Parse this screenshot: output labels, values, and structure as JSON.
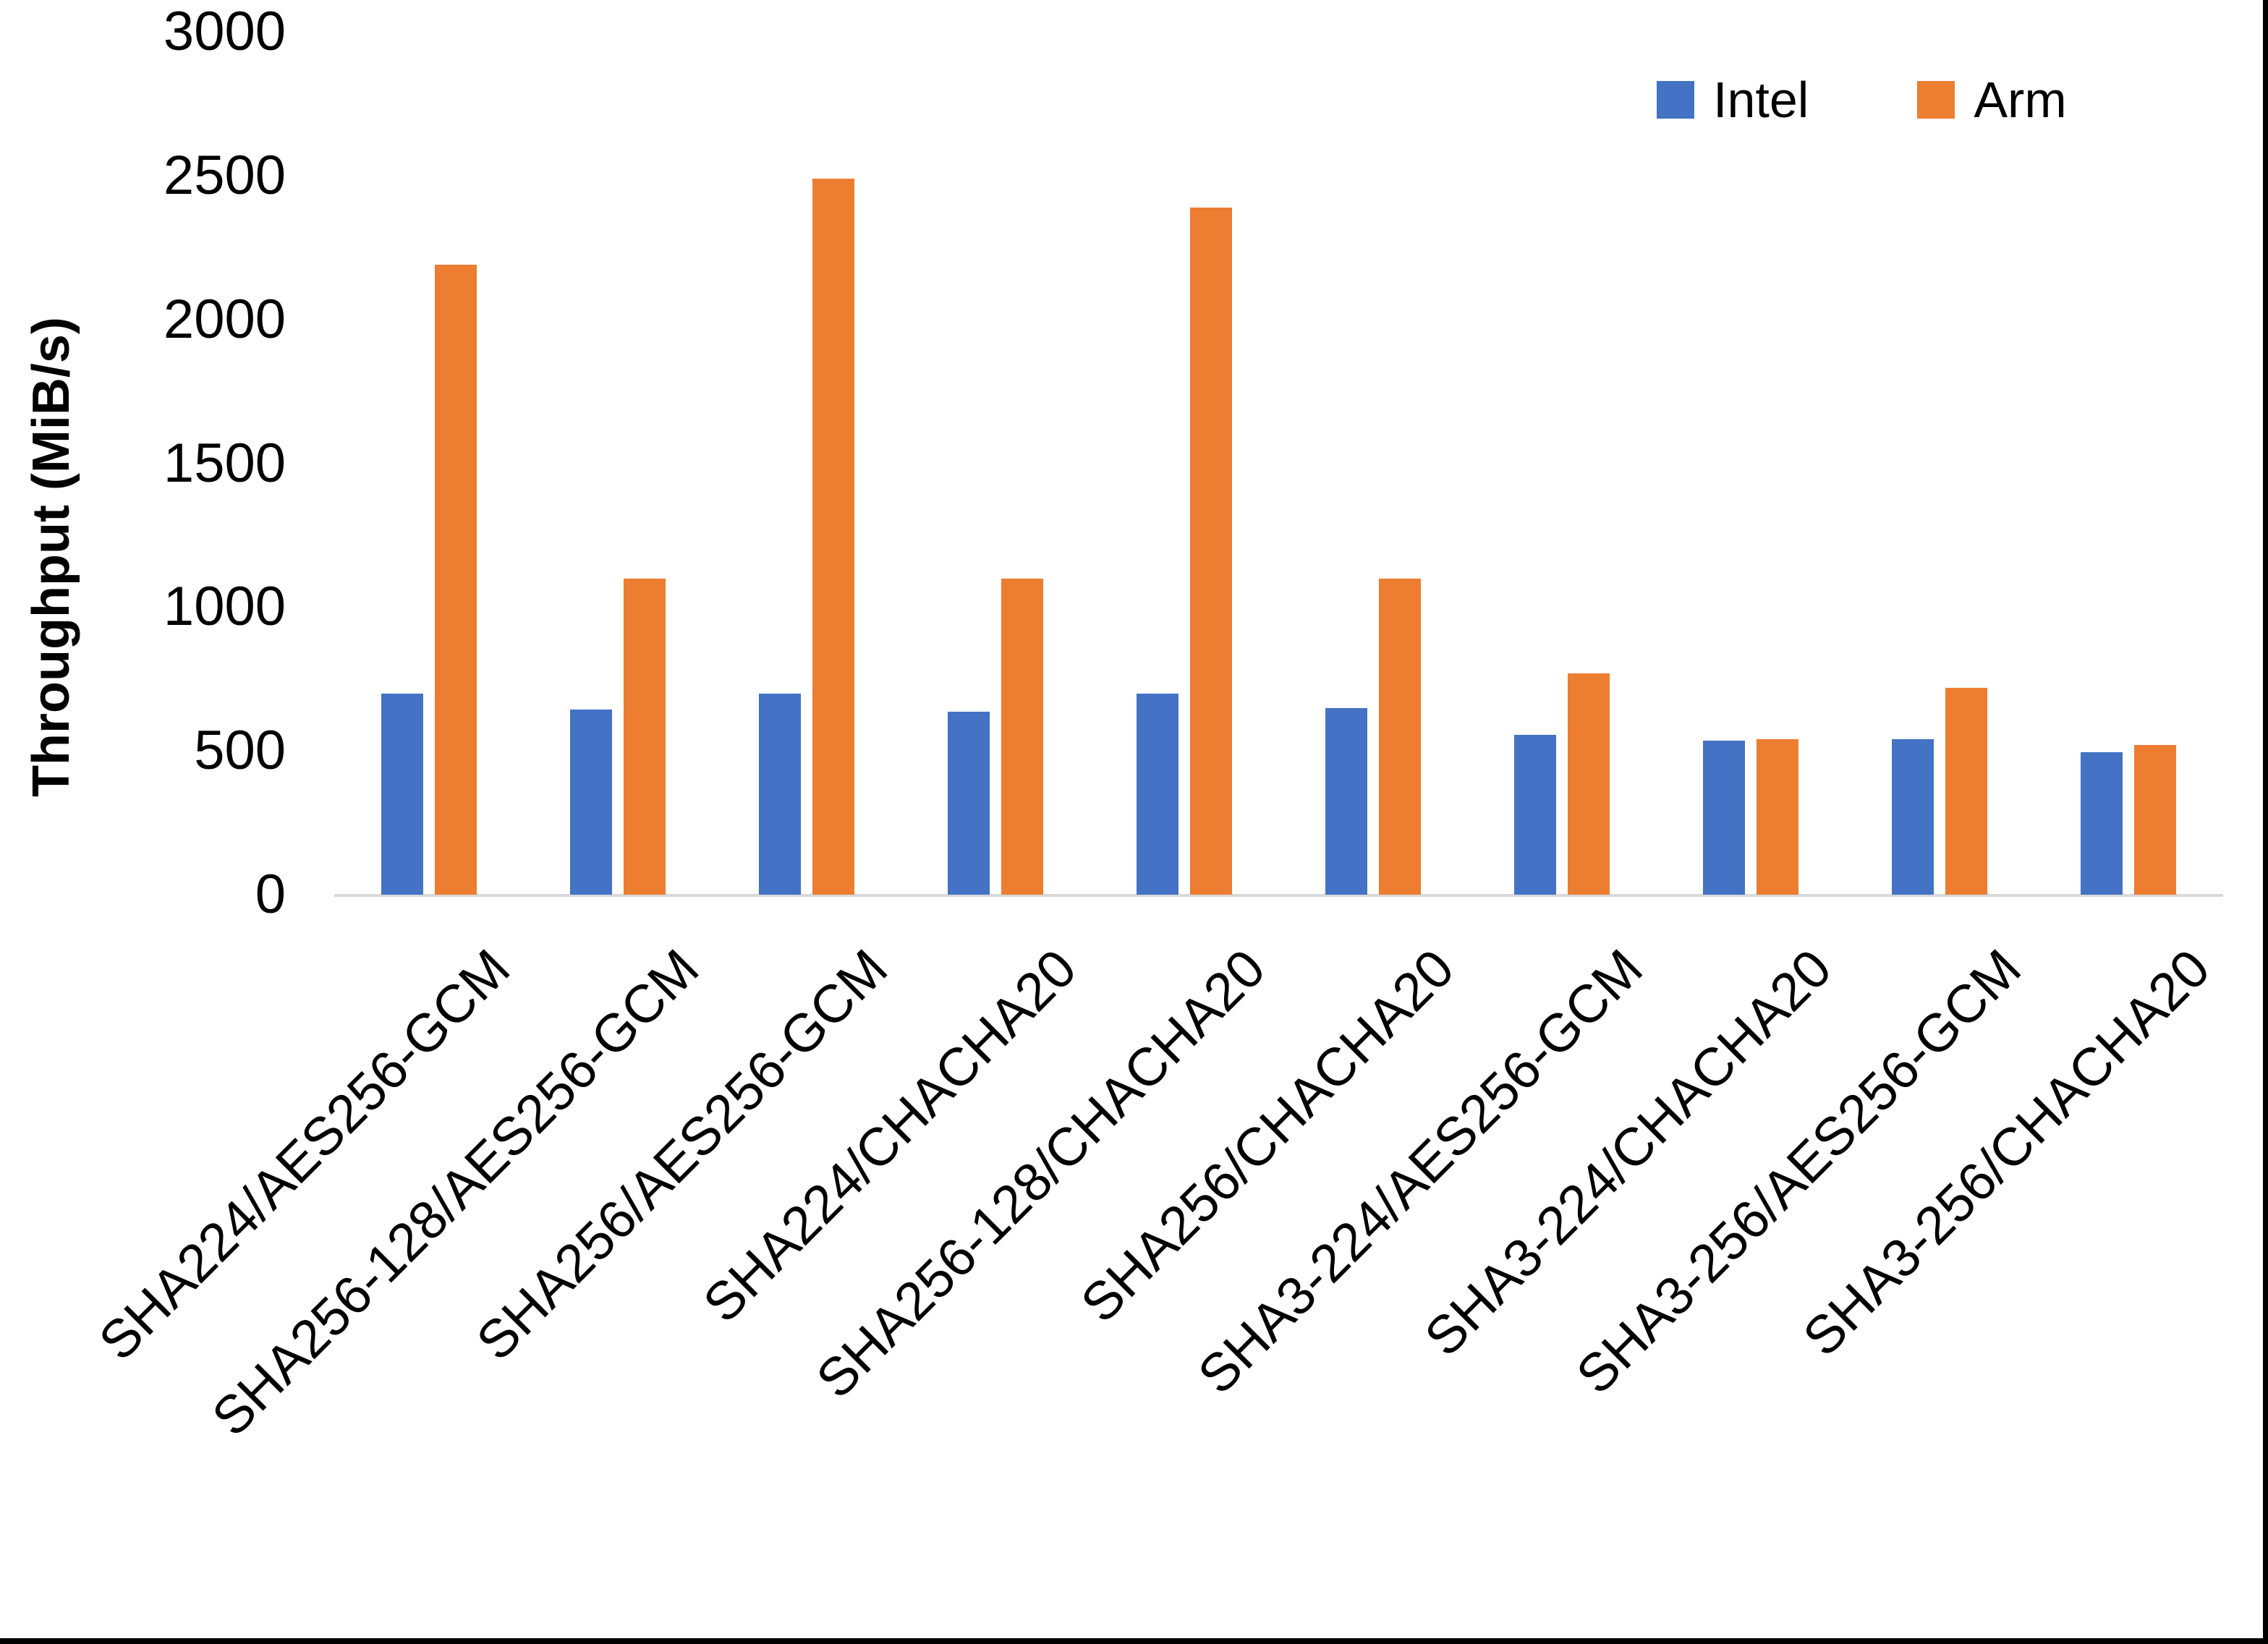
{
  "figure": {
    "background_color": "#ffffff",
    "frame_border_color": "#000000",
    "axis_line_color": "#d9d9d9",
    "text_color": "#000000"
  },
  "chart_data": {
    "type": "bar",
    "title": "",
    "xlabel": "",
    "ylabel": "Throughput (MiB/s)",
    "ylim": [
      0,
      3000
    ],
    "yticks": [
      0,
      500,
      1000,
      1500,
      2000,
      2500,
      3000
    ],
    "grid": false,
    "legend_position": "top-right",
    "categories": [
      "SHA224/AES256-GCM",
      "SHA256-128/AES256-GCM",
      "SHA256/AES256-GCM",
      "SHA224/CHACHA20",
      "SHA256-128/CHACHA20",
      "SHA256/CHACHA20",
      "SHA3-224/AES256-GCM",
      "SHA3-224/CHACHA20",
      "SHA3-256/AES256-GCM",
      "SHA3-256/CHACHA20"
    ],
    "series": [
      {
        "name": "Intel",
        "color": "#4472C4",
        "values": [
          700,
          645,
          700,
          635,
          700,
          650,
          555,
          535,
          540,
          495
        ]
      },
      {
        "name": "Arm",
        "color": "#ED7D31",
        "values": [
          2190,
          1100,
          2490,
          1100,
          2390,
          1100,
          770,
          540,
          720,
          520
        ]
      }
    ]
  }
}
